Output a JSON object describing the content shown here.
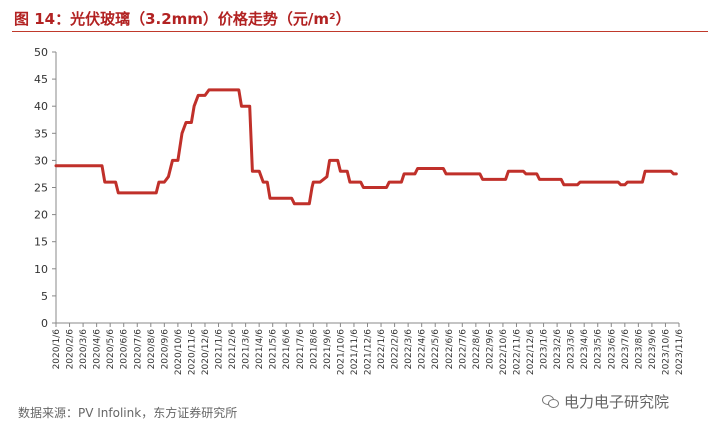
{
  "title": "图 14：光伏玻璃（3.2mm）价格走势（元/m²）",
  "source": "数据来源：PV Infolink，东方证券研究所",
  "watermark": "电力电子研究院",
  "colors": {
    "title": "#b22222",
    "line": "#c0302a",
    "axis": "#888888"
  },
  "chart_data": {
    "type": "line",
    "title": "图 14：光伏玻璃（3.2mm）价格走势（元/m²）",
    "xlabel": "",
    "ylabel": "",
    "ylim": [
      0,
      50
    ],
    "yticks": [
      0,
      5,
      10,
      15,
      20,
      25,
      30,
      35,
      40,
      45,
      50
    ],
    "grid": false,
    "legend": "none",
    "categories": [
      "2020/1/6",
      "2020/2/6",
      "2020/3/6",
      "2020/4/6",
      "2020/5/6",
      "2020/6/6",
      "2020/7/6",
      "2020/8/6",
      "2020/9/6",
      "2020/10/6",
      "2020/11/6",
      "2020/12/6",
      "2021/1/6",
      "2021/2/6",
      "2021/3/6",
      "2021/4/6",
      "2021/5/6",
      "2021/6/6",
      "2021/7/6",
      "2021/8/6",
      "2021/9/6",
      "2021/10/6",
      "2021/11/6",
      "2021/12/6",
      "2022/1/6",
      "2022/2/6",
      "2022/3/6",
      "2022/4/6",
      "2022/5/6",
      "2022/6/6",
      "2022/7/6",
      "2022/8/6",
      "2022/9/6",
      "2022/10/6",
      "2022/11/6",
      "2022/12/6",
      "2023/1/6",
      "2023/2/6",
      "2023/3/6",
      "2023/4/6",
      "2023/5/6",
      "2023/6/6",
      "2023/7/6",
      "2023/8/6",
      "2023/9/6",
      "2023/10/6",
      "2023/11/6"
    ],
    "series": [
      {
        "name": "",
        "values": [
          [
            0.0,
            29
          ],
          [
            1.0,
            29
          ],
          [
            2.0,
            29
          ],
          [
            3.0,
            29
          ],
          [
            3.4,
            29
          ],
          [
            3.6,
            26
          ],
          [
            4.0,
            26
          ],
          [
            4.4,
            26
          ],
          [
            4.6,
            24
          ],
          [
            5.0,
            24
          ],
          [
            6.0,
            24
          ],
          [
            7.0,
            24
          ],
          [
            7.4,
            24
          ],
          [
            7.6,
            26
          ],
          [
            8.0,
            26
          ],
          [
            8.3,
            27
          ],
          [
            8.6,
            30
          ],
          [
            9.0,
            30
          ],
          [
            9.3,
            35
          ],
          [
            9.6,
            37
          ],
          [
            10.0,
            37
          ],
          [
            10.2,
            40
          ],
          [
            10.5,
            42
          ],
          [
            11.0,
            42
          ],
          [
            11.3,
            43
          ],
          [
            12.0,
            43
          ],
          [
            13.0,
            43
          ],
          [
            13.5,
            43
          ],
          [
            13.7,
            40
          ],
          [
            14.0,
            40
          ],
          [
            14.3,
            40
          ],
          [
            14.5,
            28
          ],
          [
            15.0,
            28
          ],
          [
            15.3,
            26
          ],
          [
            15.6,
            26
          ],
          [
            15.8,
            23
          ],
          [
            16.0,
            23
          ],
          [
            17.0,
            23
          ],
          [
            17.4,
            23
          ],
          [
            17.6,
            22
          ],
          [
            18.0,
            22
          ],
          [
            18.7,
            22
          ],
          [
            18.9,
            25
          ],
          [
            19.0,
            26
          ],
          [
            19.5,
            26
          ],
          [
            20.0,
            27
          ],
          [
            20.2,
            30
          ],
          [
            20.5,
            30
          ],
          [
            20.8,
            30
          ],
          [
            21.0,
            28
          ],
          [
            21.5,
            28
          ],
          [
            21.7,
            26
          ],
          [
            22.0,
            26
          ],
          [
            22.5,
            26
          ],
          [
            22.7,
            25
          ],
          [
            23.0,
            25
          ],
          [
            24.0,
            25
          ],
          [
            24.4,
            25
          ],
          [
            24.6,
            26
          ],
          [
            25.0,
            26
          ],
          [
            25.5,
            26
          ],
          [
            25.7,
            27.5
          ],
          [
            26.0,
            27.5
          ],
          [
            26.5,
            27.5
          ],
          [
            26.7,
            28.5
          ],
          [
            27.0,
            28.5
          ],
          [
            28.0,
            28.5
          ],
          [
            28.6,
            28.5
          ],
          [
            28.8,
            27.5
          ],
          [
            29.0,
            27.5
          ],
          [
            30.0,
            27.5
          ],
          [
            31.0,
            27.5
          ],
          [
            31.3,
            27.5
          ],
          [
            31.5,
            26.5
          ],
          [
            32.0,
            26.5
          ],
          [
            33.0,
            26.5
          ],
          [
            33.2,
            26.5
          ],
          [
            33.4,
            28
          ],
          [
            34.0,
            28
          ],
          [
            34.5,
            28
          ],
          [
            34.7,
            27.5
          ],
          [
            35.0,
            27.5
          ],
          [
            35.5,
            27.5
          ],
          [
            35.7,
            26.5
          ],
          [
            36.0,
            26.5
          ],
          [
            37.0,
            26.5
          ],
          [
            37.3,
            26.5
          ],
          [
            37.5,
            25.5
          ],
          [
            38.0,
            25.5
          ],
          [
            38.5,
            25.5
          ],
          [
            38.7,
            26
          ],
          [
            39.0,
            26
          ],
          [
            40.0,
            26
          ],
          [
            41.0,
            26
          ],
          [
            41.5,
            26
          ],
          [
            41.7,
            25.5
          ],
          [
            42.0,
            25.5
          ],
          [
            42.2,
            26
          ],
          [
            43.0,
            26
          ],
          [
            43.3,
            26
          ],
          [
            43.5,
            28
          ],
          [
            44.0,
            28
          ],
          [
            45.0,
            28
          ],
          [
            45.4,
            28
          ],
          [
            45.6,
            27.5
          ],
          [
            45.8,
            27.5
          ]
        ]
      }
    ]
  }
}
